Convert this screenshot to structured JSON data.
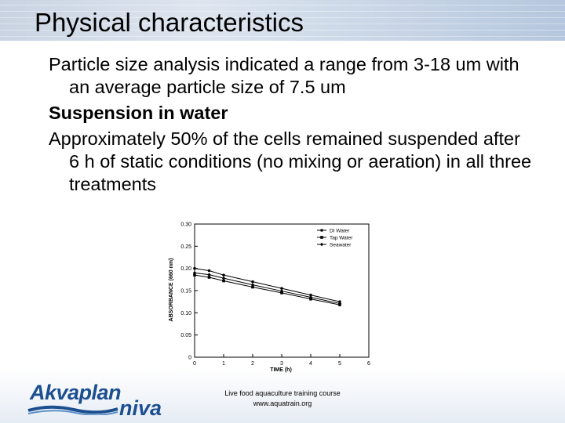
{
  "slide": {
    "title": "Physical characteristics",
    "paragraphs": [
      "Particle size analysis indicated a range from 3-18 um with an average particle size of 7.5 um",
      "Suspension in water",
      "Approximately 50% of the cells remained suspended after 6 h of static conditions (no mixing or aeration) in all three treatments"
    ],
    "footer_line1": "Live food aquaculture training course",
    "footer_line2": "www.aquatrain.org",
    "logo_main": "Akvaplan",
    "logo_sub": "niva"
  },
  "colors": {
    "title_band": "#c9d3e2",
    "logo_blue": "#1c4f8f",
    "chart_line": "#000000"
  },
  "chart_data": {
    "type": "line",
    "xlabel": "TIME (h)",
    "ylabel": "ABSORBANCE (660 nm)",
    "xlim": [
      0,
      6
    ],
    "ylim": [
      0,
      0.3
    ],
    "x_ticks": [
      "0",
      "1",
      "2",
      "3",
      "4",
      "5",
      "6"
    ],
    "y_ticks": [
      "0",
      "0.05",
      "0.10",
      "0.15",
      "0.20",
      "0.25",
      "0.30"
    ],
    "legend_position": "top-right",
    "grid": false,
    "series": [
      {
        "name": "DI Water",
        "marker": "circle",
        "x": [
          0,
          0.5,
          1,
          2,
          3,
          4,
          5
        ],
        "values": [
          0.2,
          0.195,
          0.185,
          0.17,
          0.155,
          0.14,
          0.125
        ]
      },
      {
        "name": "Tap Water",
        "marker": "square",
        "x": [
          0,
          0.5,
          1,
          2,
          3,
          4,
          5
        ],
        "values": [
          0.185,
          0.18,
          0.172,
          0.158,
          0.145,
          0.131,
          0.118
        ]
      },
      {
        "name": "Seawater",
        "marker": "diamond",
        "x": [
          0,
          0.5,
          1,
          2,
          3,
          4,
          5
        ],
        "values": [
          0.19,
          0.186,
          0.178,
          0.163,
          0.149,
          0.135,
          0.121
        ]
      }
    ]
  }
}
